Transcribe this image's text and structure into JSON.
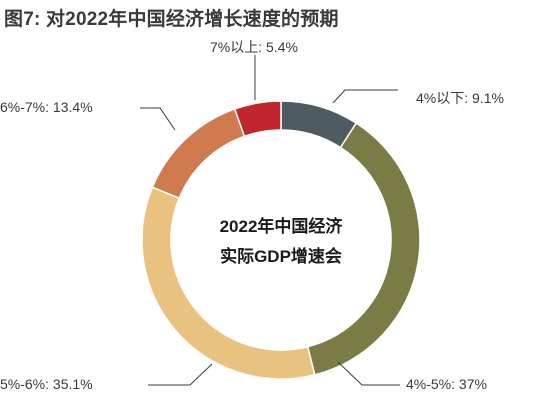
{
  "chart_data": {
    "type": "pie",
    "title": "图7: 对2022年中国经济增长速度的预期",
    "center_label_lines": [
      "2022年中国经济",
      "实际GDP增速会"
    ],
    "slices": [
      {
        "label": "4%以下",
        "value": 9.1,
        "display": "4%以下: 9.1%",
        "color": "#4f5b62"
      },
      {
        "label": "4%-5%",
        "value": 37,
        "display": "4%-5%: 37%",
        "color": "#7b7b46"
      },
      {
        "label": "5%-6%",
        "value": 35.1,
        "display": "5%-6%: 35.1%",
        "color": "#e8c27e"
      },
      {
        "label": "6%-7%",
        "value": 13.4,
        "display": "6%-7%: 13.4%",
        "color": "#cf7a4f"
      },
      {
        "label": "7%以上",
        "value": 5.4,
        "display": "7%以上: 5.4%",
        "color": "#c0262c"
      }
    ]
  }
}
